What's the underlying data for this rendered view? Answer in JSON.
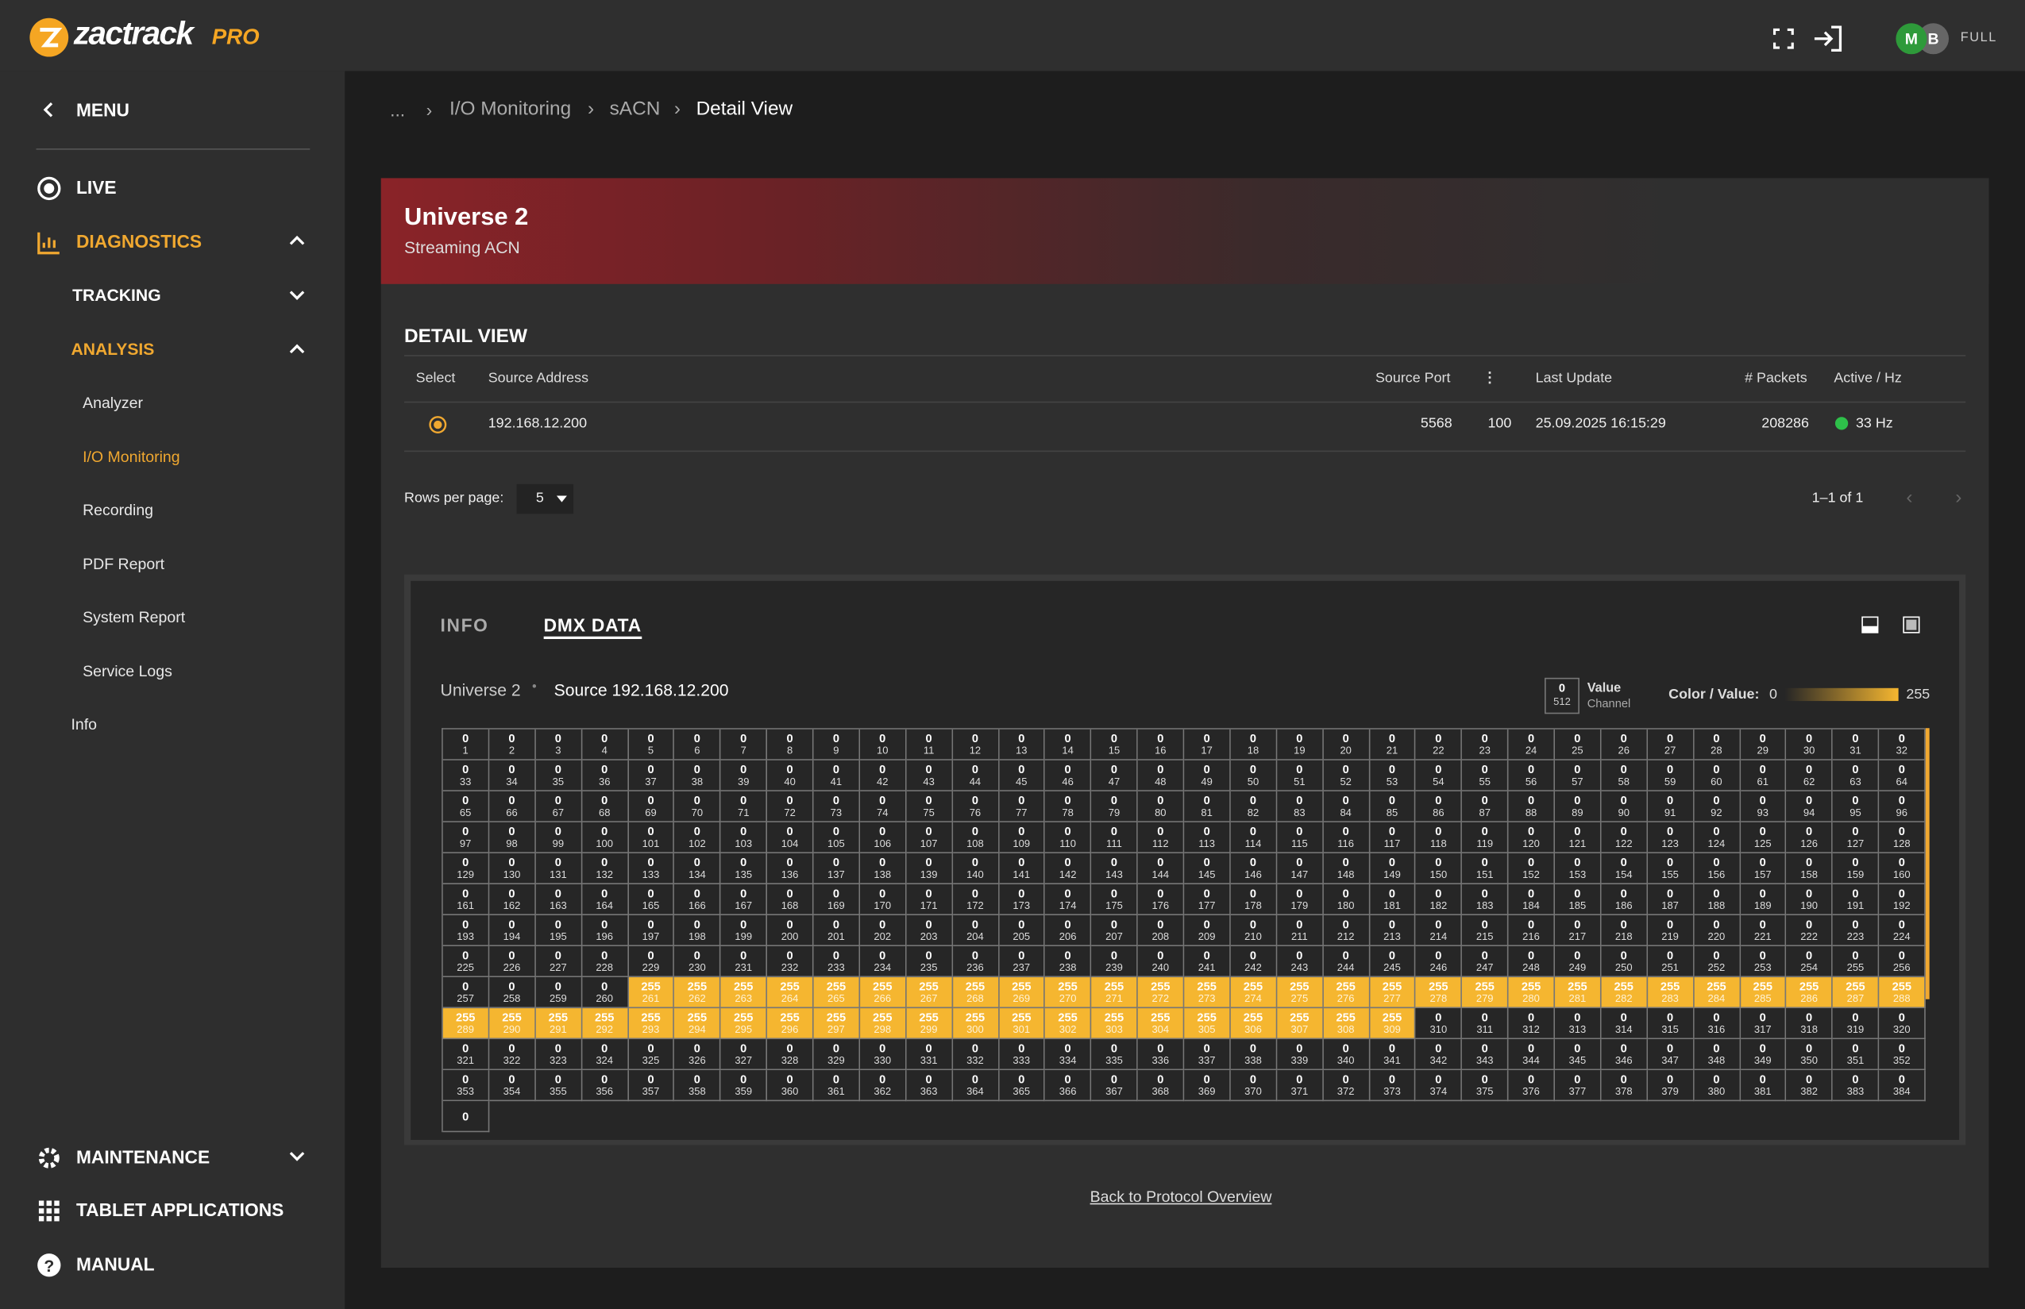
{
  "header": {
    "logo": "zactrack",
    "logo_suffix": "PRO",
    "user_initials": [
      "M",
      "B"
    ],
    "user_role": "FULL"
  },
  "sidebar": {
    "menu": "MENU",
    "live": "LIVE",
    "diagnostics": "DIAGNOSTICS",
    "tracking": "TRACKING",
    "analysis": "ANALYSIS",
    "sub_items": [
      "Analyzer",
      "I/O Monitoring",
      "Recording",
      "PDF Report",
      "System Report",
      "Service Logs"
    ],
    "info": "Info",
    "maintenance": "MAINTENANCE",
    "tablet_applications": "TABLET APPLICATIONS",
    "manual": "MANUAL"
  },
  "breadcrumb": [
    "...",
    "I/O Monitoring",
    "sACN",
    "Detail View"
  ],
  "banner": {
    "title": "Universe 2",
    "subtitle": "Streaming ACN"
  },
  "detail": {
    "title": "DETAIL VIEW",
    "columns": [
      "Select",
      "Source Address",
      "Source Port",
      "Last Update",
      "# Packets",
      "Active / Hz"
    ],
    "row": {
      "source_address": "192.168.12.200",
      "source_port": 5568,
      "priority": 100,
      "last_update": "25.09.2025 16:15:29",
      "packets": 208286,
      "active_hz": "33 Hz"
    },
    "rows_per_page_label": "Rows per page:",
    "rows_per_page": 5,
    "pagination": "1–1 of 1"
  },
  "dmx": {
    "tabs": [
      "INFO",
      "DMX DATA"
    ],
    "universe": "Universe 2",
    "source": "Source 192.168.12.200",
    "key_value": 0,
    "key_channel": 512,
    "key_value_label": "Value",
    "key_channel_label": "Channel",
    "scale_label": "Color / Value:",
    "scale_min": 0,
    "scale_max": 255,
    "scale_color": "#f5b630",
    "channels": [
      1,
      2,
      3,
      4,
      5,
      6,
      7,
      8,
      9,
      10,
      11,
      12,
      13,
      14,
      15,
      16,
      17,
      18,
      19,
      20,
      21,
      22,
      23,
      24,
      25,
      26,
      27,
      28,
      29,
      30,
      31,
      32,
      33,
      34,
      35,
      36,
      37,
      38,
      39,
      40,
      41,
      42,
      43,
      44,
      45,
      46,
      47,
      48,
      49,
      50,
      51,
      52,
      53,
      54,
      55,
      56,
      57,
      58,
      59,
      60,
      61,
      62,
      63,
      64,
      65,
      66,
      67,
      68,
      69,
      70,
      71,
      72,
      73,
      74,
      75,
      76,
      77,
      78,
      79,
      80,
      81,
      82,
      83,
      84,
      85,
      86,
      87,
      88,
      89,
      90,
      91,
      92,
      93,
      94,
      95,
      96,
      97,
      98,
      99,
      100,
      101,
      102,
      103,
      104,
      105,
      106,
      107,
      108,
      109,
      110,
      111,
      112,
      113,
      114,
      115,
      116,
      117,
      118,
      119,
      120,
      121,
      122,
      123,
      124,
      125,
      126,
      127,
      128,
      129,
      130,
      131,
      132,
      133,
      134,
      135,
      136,
      137,
      138,
      139,
      140,
      141,
      142,
      143,
      144,
      145,
      146,
      147,
      148,
      149,
      150,
      151,
      152,
      153,
      154,
      155,
      156,
      157,
      158,
      159,
      160,
      161,
      162,
      163,
      164,
      165,
      166,
      167,
      168,
      169,
      170,
      171,
      172,
      173,
      174,
      175,
      176,
      177,
      178,
      179,
      180,
      181,
      182,
      183,
      184,
      185,
      186,
      187,
      188,
      189,
      190,
      191,
      192,
      193,
      194,
      195,
      196,
      197,
      198,
      199,
      200,
      201,
      202,
      203,
      204,
      205,
      206,
      207,
      208,
      209,
      210,
      211,
      212,
      213,
      214,
      215,
      216,
      217,
      218,
      219,
      220,
      221,
      222,
      223,
      224,
      225,
      226,
      227,
      228,
      229,
      230,
      231,
      232,
      233,
      234,
      235,
      236,
      237,
      238,
      239,
      240,
      241,
      242,
      243,
      244,
      245,
      246,
      247,
      248,
      249,
      250,
      251,
      252,
      253,
      254,
      255,
      256,
      257,
      258,
      259,
      260,
      261,
      262,
      263,
      264,
      265,
      266,
      267,
      268,
      269,
      270,
      271,
      272,
      273,
      274,
      275,
      276,
      277,
      278,
      279,
      280,
      281,
      282,
      283,
      284,
      285,
      286,
      287,
      288,
      289,
      290,
      291,
      292,
      293,
      294,
      295,
      296,
      297,
      298,
      299,
      300,
      301,
      302,
      303,
      304,
      305,
      306,
      307,
      308,
      309,
      310,
      311,
      312,
      313,
      314,
      315,
      316,
      317,
      318,
      319,
      320,
      321,
      322,
      323,
      324,
      325,
      326,
      327,
      328,
      329,
      330,
      331,
      332,
      333,
      334,
      335,
      336,
      337,
      338,
      339,
      340,
      341,
      342,
      343,
      344,
      345,
      346,
      347,
      348,
      349,
      350,
      351,
      352,
      353,
      354,
      355,
      356,
      357,
      358,
      359,
      360,
      361,
      362,
      363,
      364,
      365,
      366,
      367,
      368,
      369,
      370,
      371,
      372,
      373,
      374,
      375,
      376,
      377,
      378,
      379,
      380,
      381,
      382,
      383,
      384
    ],
    "values": [
      0,
      0,
      0,
      0,
      0,
      0,
      0,
      0,
      0,
      0,
      0,
      0,
      0,
      0,
      0,
      0,
      0,
      0,
      0,
      0,
      0,
      0,
      0,
      0,
      0,
      0,
      0,
      0,
      0,
      0,
      0,
      0,
      0,
      0,
      0,
      0,
      0,
      0,
      0,
      0,
      0,
      0,
      0,
      0,
      0,
      0,
      0,
      0,
      0,
      0,
      0,
      0,
      0,
      0,
      0,
      0,
      0,
      0,
      0,
      0,
      0,
      0,
      0,
      0,
      0,
      0,
      0,
      0,
      0,
      0,
      0,
      0,
      0,
      0,
      0,
      0,
      0,
      0,
      0,
      0,
      0,
      0,
      0,
      0,
      0,
      0,
      0,
      0,
      0,
      0,
      0,
      0,
      0,
      0,
      0,
      0,
      0,
      0,
      0,
      0,
      0,
      0,
      0,
      0,
      0,
      0,
      0,
      0,
      0,
      0,
      0,
      0,
      0,
      0,
      0,
      0,
      0,
      0,
      0,
      0,
      0,
      0,
      0,
      0,
      0,
      0,
      0,
      0,
      0,
      0,
      0,
      0,
      0,
      0,
      0,
      0,
      0,
      0,
      0,
      0,
      0,
      0,
      0,
      0,
      0,
      0,
      0,
      0,
      0,
      0,
      0,
      0,
      0,
      0,
      0,
      0,
      0,
      0,
      0,
      0,
      0,
      0,
      0,
      0,
      0,
      0,
      0,
      0,
      0,
      0,
      0,
      0,
      0,
      0,
      0,
      0,
      0,
      0,
      0,
      0,
      0,
      0,
      0,
      0,
      0,
      0,
      0,
      0,
      0,
      0,
      0,
      0,
      0,
      0,
      0,
      0,
      0,
      0,
      0,
      0,
      0,
      0,
      0,
      0,
      0,
      0,
      0,
      0,
      0,
      0,
      0,
      0,
      0,
      0,
      0,
      0,
      0,
      0,
      0,
      0,
      0,
      0,
      0,
      0,
      0,
      0,
      0,
      0,
      0,
      0,
      0,
      0,
      0,
      0,
      0,
      0,
      0,
      0,
      0,
      0,
      0,
      0,
      0,
      0,
      0,
      0,
      0,
      0,
      0,
      0,
      0,
      0,
      0,
      0,
      0,
      0,
      0,
      0,
      0,
      0,
      255,
      255,
      255,
      255,
      255,
      255,
      255,
      255,
      255,
      255,
      255,
      255,
      255,
      255,
      255,
      255,
      255,
      255,
      255,
      255,
      255,
      255,
      255,
      255,
      255,
      255,
      255,
      255,
      255,
      255,
      255,
      255,
      255,
      255,
      255,
      255,
      255,
      255,
      255,
      255,
      255,
      255,
      255,
      255,
      255,
      255,
      255,
      255,
      255,
      0,
      0,
      0,
      0,
      0,
      0,
      0,
      0,
      0,
      0,
      0,
      0,
      0,
      0,
      0,
      0,
      0,
      0,
      0,
      0,
      0,
      0,
      0,
      0,
      0,
      0,
      0,
      0,
      0,
      0,
      0,
      0,
      0,
      0,
      0,
      0,
      0,
      0,
      0,
      0,
      0,
      0,
      0,
      0,
      0,
      0,
      0,
      0,
      0,
      0,
      0,
      0,
      0,
      0,
      0,
      0,
      0,
      0,
      0,
      0,
      0,
      0,
      0,
      0,
      0,
      0,
      0,
      0,
      0,
      0,
      0,
      0,
      0,
      0,
      0,
      0
    ]
  },
  "footer_link": "Back to Protocol Overview"
}
